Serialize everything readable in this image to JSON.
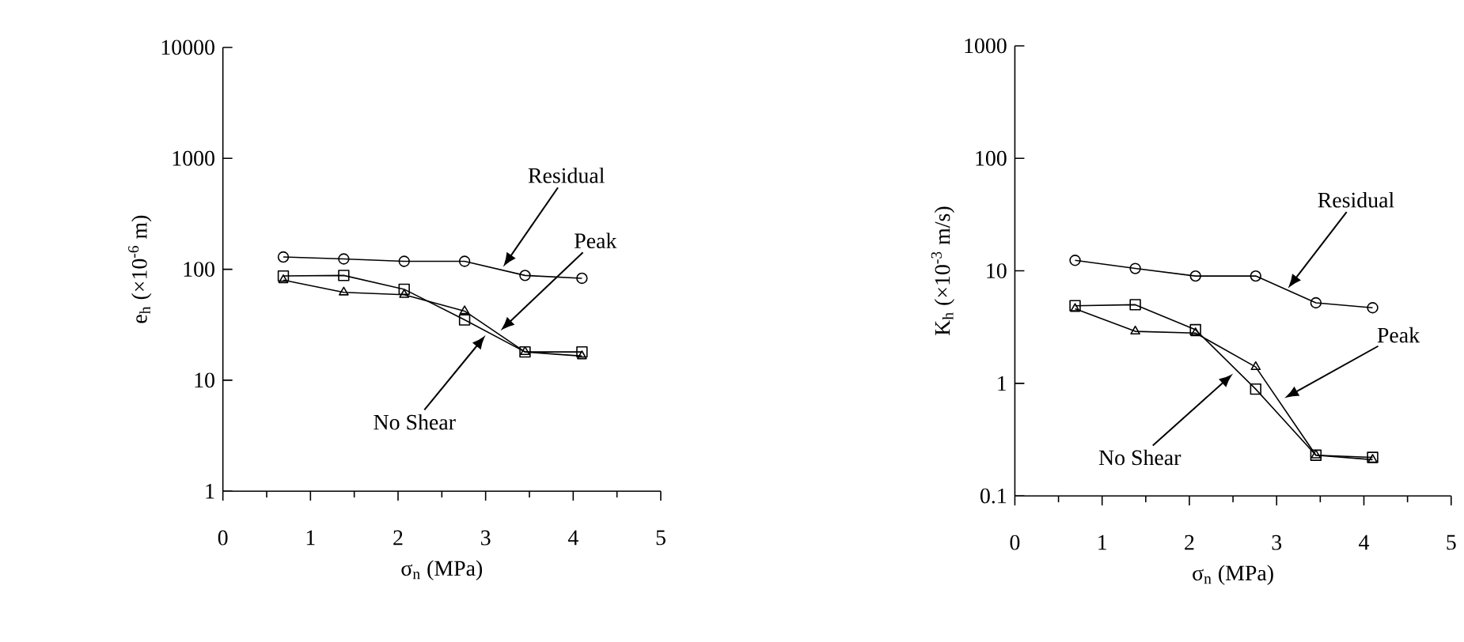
{
  "chart_data": [
    {
      "type": "line",
      "xlabel": "σ$_{n}$ (MPa)",
      "ylabel": "e$_{h}$ (×10$^{-6}$ m)",
      "log": "y",
      "x": [
        0.69,
        1.38,
        2.07,
        2.76,
        3.45,
        4.1
      ],
      "xlim": [
        0,
        5
      ],
      "xticks": [
        0,
        1,
        2,
        3,
        4,
        5
      ],
      "ylim": [
        1,
        10000
      ],
      "yticks": [
        1,
        10,
        100,
        1000,
        10000
      ],
      "series": [
        {
          "color": "#000000",
          "marker": "circle",
          "values": [
            129,
            124,
            118,
            118,
            88,
            83
          ]
        },
        {
          "color": "#000000",
          "marker": "triangle",
          "values": [
            80,
            62,
            59,
            42,
            18,
            16.5
          ]
        },
        {
          "color": "#000000",
          "marker": "square",
          "values": [
            87,
            88,
            66,
            35,
            18,
            18
          ]
        }
      ],
      "annotations": [
        {
          "text": "Residual",
          "x": 3.2,
          "y": 105
        },
        {
          "text": "Peak",
          "x": 3.17,
          "y": 28
        },
        {
          "text": "No Shear",
          "x": 3.0,
          "y": 25.5
        }
      ]
    },
    {
      "type": "line",
      "xlabel": "σ$_{n}$ (MPa)",
      "ylabel": "K$_{h}$ (×10$^{-3}$ m/s)",
      "log": "y",
      "x": [
        0.69,
        1.38,
        2.07,
        2.76,
        3.45,
        4.1
      ],
      "xlim": [
        0,
        5
      ],
      "xticks": [
        0,
        1,
        2,
        3,
        4,
        5
      ],
      "ylim": [
        0.1,
        1000
      ],
      "yticks": [
        0.1,
        1,
        10,
        100,
        1000
      ],
      "series": [
        {
          "color": "#000000",
          "marker": "circle",
          "values": [
            12.4,
            10.5,
            9.0,
            9.0,
            5.2,
            4.7
          ]
        },
        {
          "color": "#000000",
          "marker": "triangle",
          "values": [
            4.6,
            2.9,
            2.8,
            1.4,
            0.23,
            0.21
          ]
        },
        {
          "color": "#000000",
          "marker": "square",
          "values": [
            4.9,
            5.0,
            3.0,
            0.89,
            0.23,
            0.22
          ]
        }
      ],
      "annotations": [
        {
          "text": "Residual",
          "x": 3.13,
          "y": 7.0
        },
        {
          "text": "Peak",
          "x": 3.09,
          "y": 0.74
        },
        {
          "text": "No Shear",
          "x": 2.5,
          "y": 1.22
        }
      ]
    }
  ]
}
